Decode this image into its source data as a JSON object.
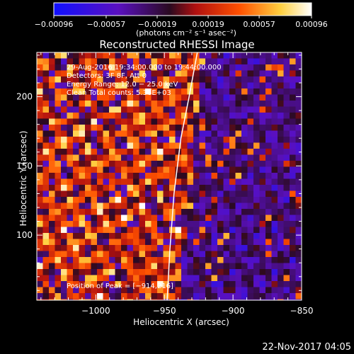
{
  "chart_data": {
    "type": "heatmap",
    "title": "Reconstructed RHESSI Image",
    "xlabel": "Heliocentric X (arcsec)",
    "ylabel": "Heliocentric Y (arcsec)",
    "xlim": [
      -1043,
      -850
    ],
    "ylim": [
      53,
      232
    ],
    "x_ticks": [
      -1000,
      -950,
      -900,
      -850
    ],
    "y_ticks": [
      100,
      150,
      200
    ],
    "x_tick_labels": [
      "−1000",
      "−950",
      "−900",
      "−850"
    ],
    "y_tick_labels": [
      "100",
      "150",
      "200"
    ],
    "colorbar": {
      "range": [
        -0.00096,
        0.00096
      ],
      "tick_values": [
        -0.00096,
        -0.00057,
        -0.00019,
        0.00019,
        0.00057,
        0.00096
      ],
      "tick_labels": [
        "−0.00096",
        "−0.00057",
        "−0.00019",
        "0.00019",
        "0.00057",
        "0.00096"
      ],
      "unit_label": "(photons cm⁻² s⁻¹ asec⁻²)",
      "colors": [
        "#1010ff",
        "#5a10c0",
        "#2a0a20",
        "#b01010",
        "#ff5000",
        "#ffd040",
        "#ffffff"
      ]
    },
    "annotations": {
      "time_range": "29-Aug-2016 19:34:00.000 to 19:44:00.000",
      "detectors": "Detectors: 3F 8F, Att 0",
      "energy_range": "Energy Range: 12.0 − 25.0 keV",
      "clean": "Clean    Total counts: 5.38E+03",
      "peak": "Position of Peak = [−914,216]"
    },
    "limb_points": [
      [
        -948,
        53
      ],
      [
        -946,
        90
      ],
      [
        -943,
        130
      ],
      [
        -938,
        170
      ],
      [
        -932,
        200
      ],
      [
        -926,
        232
      ]
    ],
    "peak_position": [
      -914,
      216
    ]
  },
  "footer": {
    "date": "22-Nov-2017 04:05"
  }
}
